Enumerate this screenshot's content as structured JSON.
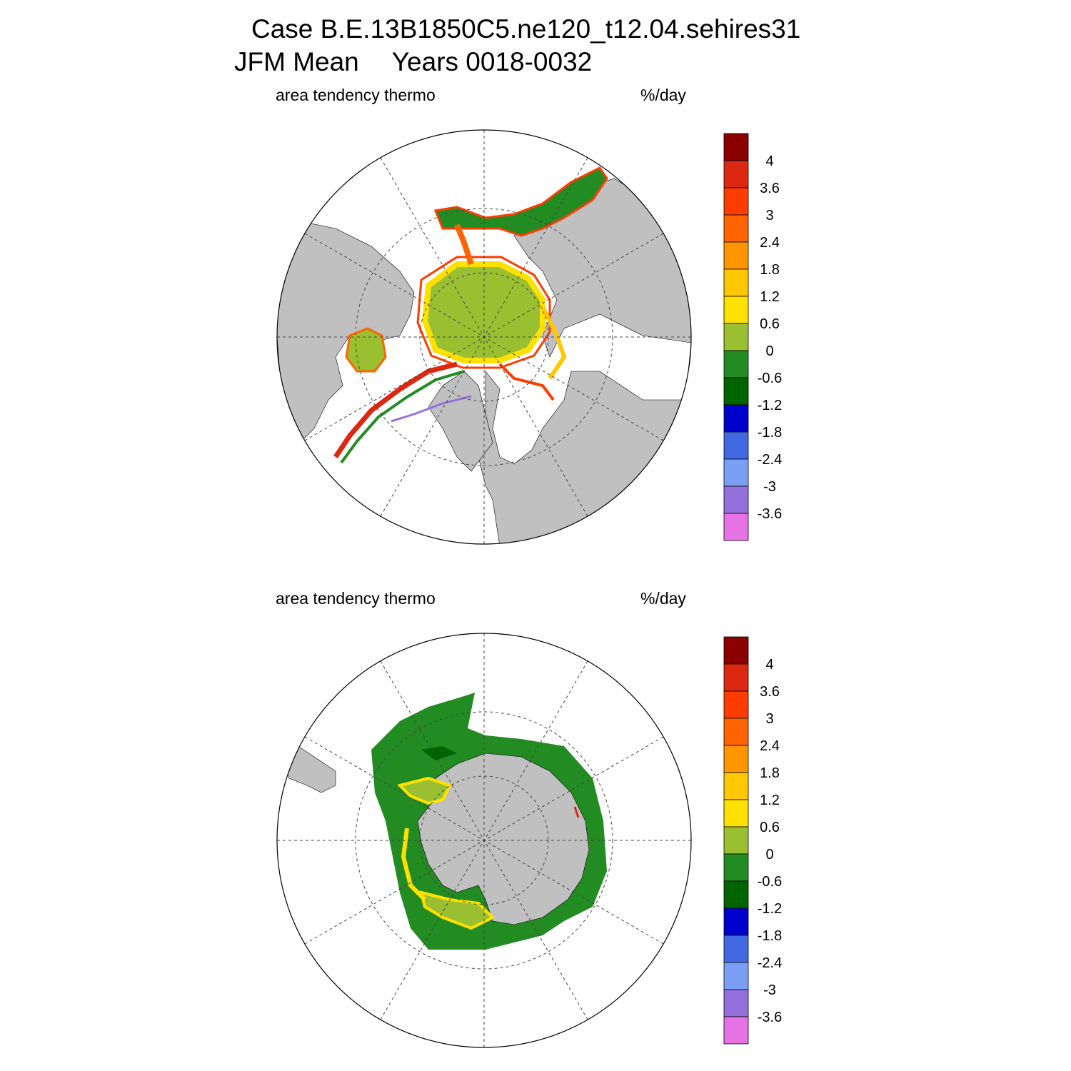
{
  "header": {
    "case_line": "Case B.E.13B1850C5.ne120_t12.04.sehires31",
    "mean_label": "JFM Mean",
    "years_label": "Years 0018-0032"
  },
  "panels": [
    {
      "hemisphere": "north",
      "variable_label": "area tendency thermo",
      "units_label": "%/day"
    },
    {
      "hemisphere": "south",
      "variable_label": "area tendency thermo",
      "units_label": "%/day"
    }
  ],
  "colorbar": {
    "tick_labels": [
      "4",
      "3.6",
      "3",
      "2.4",
      "1.8",
      "1.2",
      "0.6",
      "0",
      "-0.6",
      "-1.2",
      "-1.8",
      "-2.4",
      "-3",
      "-3.6"
    ],
    "colors": [
      "#8b0000",
      "#dc2810",
      "#ff3c00",
      "#ff6400",
      "#ff9600",
      "#ffc800",
      "#ffe100",
      "#9ac031",
      "#228b22",
      "#006400",
      "#0000cd",
      "#4169e1",
      "#7b9ff5",
      "#9370db",
      "#e673e6"
    ]
  },
  "colors": {
    "land": "#c0c0c0",
    "ocean": "#ffffff",
    "ice_neutral": "#9ac031",
    "ice_negative": "#228b22"
  }
}
